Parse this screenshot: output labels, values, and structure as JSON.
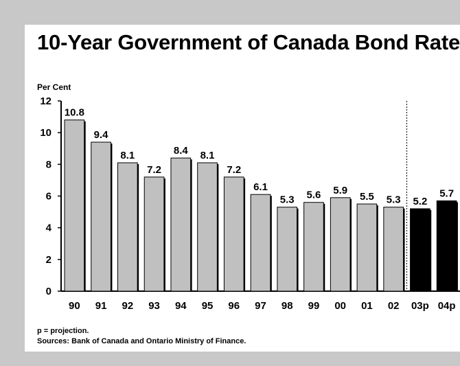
{
  "chart_data": {
    "type": "bar",
    "title": "10-Year Government of Canada Bond Rate",
    "ylabel": "Per Cent",
    "xlabel": "",
    "ylim": [
      0,
      12
    ],
    "yticks": [
      0,
      2,
      4,
      6,
      8,
      10,
      12
    ],
    "categories": [
      "90",
      "91",
      "92",
      "93",
      "94",
      "95",
      "96",
      "97",
      "98",
      "99",
      "00",
      "01",
      "02",
      "03p",
      "04p"
    ],
    "values": [
      10.8,
      9.4,
      8.1,
      7.2,
      8.4,
      8.1,
      7.2,
      6.1,
      5.3,
      5.6,
      5.9,
      5.5,
      5.3,
      5.2,
      5.7
    ],
    "value_labels": [
      "10.8",
      "9.4",
      "8.1",
      "7.2",
      "8.4",
      "8.1",
      "7.2",
      "6.1",
      "5.3",
      "5.6",
      "5.9",
      "5.5",
      "5.3",
      "5.2",
      "5.7"
    ],
    "projected": [
      false,
      false,
      false,
      false,
      false,
      false,
      false,
      false,
      false,
      false,
      false,
      false,
      false,
      true,
      true
    ],
    "colors": {
      "actual": "#c0c0c0",
      "projection": "#000000",
      "outline": "#000000"
    },
    "grid": false,
    "divider": "dotted vertical line between 02 and 03p"
  },
  "notes": {
    "projection": "p = projection.",
    "sources": "Sources:  Bank of Canada and Ontario Ministry of Finance."
  }
}
